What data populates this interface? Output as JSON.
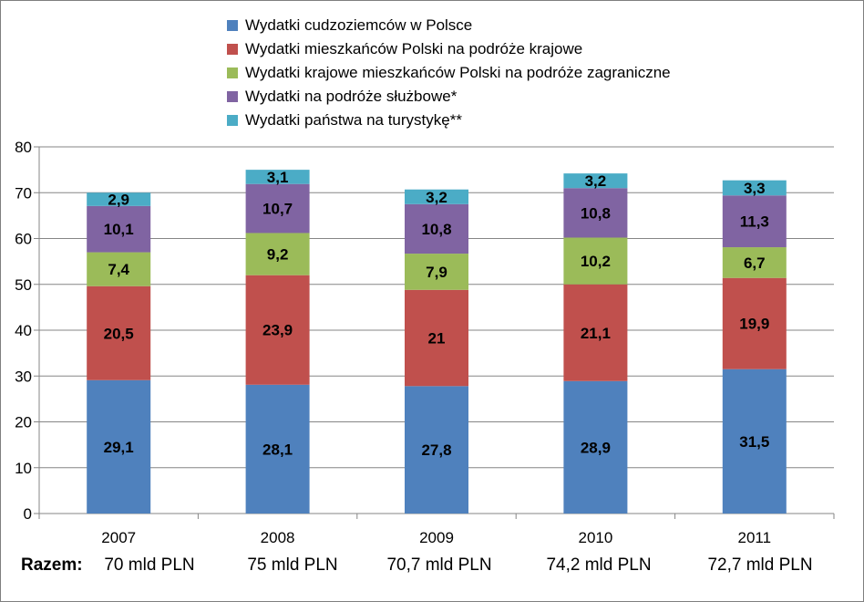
{
  "chart_data": {
    "type": "bar",
    "stacked": true,
    "categories": [
      "2007",
      "2008",
      "2009",
      "2010",
      "2011"
    ],
    "series": [
      {
        "name": "Wydatki cudzoziemców w Polsce",
        "color": "#4F81BD",
        "values": [
          29.1,
          28.1,
          27.8,
          28.9,
          31.5
        ],
        "labels": [
          "29,1",
          "28,1",
          "27,8",
          "28,9",
          "31,5"
        ]
      },
      {
        "name": "Wydatki mieszkańców Polski na podróże krajowe",
        "color": "#C0504D",
        "values": [
          20.5,
          23.9,
          21,
          21.1,
          19.9
        ],
        "labels": [
          "20,5",
          "23,9",
          "21",
          "21,1",
          "19,9"
        ]
      },
      {
        "name": "Wydatki krajowe mieszkańców Polski na podróże zagraniczne",
        "color": "#9BBB59",
        "values": [
          7.4,
          9.2,
          7.9,
          10.2,
          6.7
        ],
        "labels": [
          "7,4",
          "9,2",
          "7,9",
          "10,2",
          "6,7"
        ]
      },
      {
        "name": "Wydatki na podróże służbowe*",
        "color": "#8064A2",
        "values": [
          10.1,
          10.7,
          10.8,
          10.8,
          11.3
        ],
        "labels": [
          "10,1",
          "10,7",
          "10,8",
          "10,8",
          "11,3"
        ]
      },
      {
        "name": "Wydatki państwa na turystykę**",
        "color": "#4BACC6",
        "values": [
          2.9,
          3.1,
          3.2,
          3.2,
          3.3
        ],
        "labels": [
          "2,9",
          "3,1",
          "3,2",
          "3,2",
          "3,3"
        ]
      }
    ],
    "ylim": [
      0,
      80
    ],
    "yticks": [
      "0",
      "10",
      "20",
      "30",
      "40",
      "50",
      "60",
      "70",
      "80"
    ],
    "grid": true,
    "legend": "top"
  },
  "totals": {
    "label": "Razem:",
    "values": [
      "70 mld PLN",
      "75 mld PLN",
      "70,7 mld PLN",
      "74,2 mld PLN",
      "72,7 mld PLN"
    ]
  }
}
